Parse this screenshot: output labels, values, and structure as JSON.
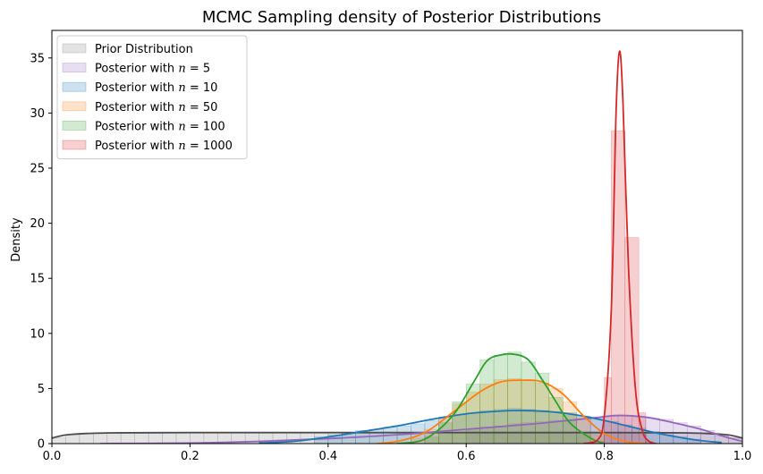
{
  "chart_data": {
    "type": "area",
    "title": "MCMC Sampling density of Posterior Distributions",
    "xlabel": "",
    "ylabel": "Density",
    "xlim": [
      0.0,
      1.0
    ],
    "ylim": [
      0,
      37.5
    ],
    "x_ticks": [
      "0.0",
      "0.2",
      "0.4",
      "0.6",
      "0.8",
      "1.0"
    ],
    "y_ticks": [
      "0",
      "5",
      "10",
      "15",
      "20",
      "25",
      "30",
      "35"
    ],
    "legend_position": "top-left",
    "series": [
      {
        "name": "Prior Distribution",
        "hist_color": "#7f7f7f",
        "line_color": "#4d4d4d",
        "hist_bins": [
          [
            0.0,
            0.02,
            0.55
          ],
          [
            0.02,
            0.04,
            0.85
          ],
          [
            0.04,
            0.06,
            0.95
          ],
          [
            0.06,
            0.08,
            1.0
          ],
          [
            0.08,
            0.1,
            1.0
          ],
          [
            0.1,
            0.12,
            1.0
          ],
          [
            0.12,
            0.14,
            1.0
          ],
          [
            0.14,
            0.16,
            1.0
          ],
          [
            0.16,
            0.18,
            1.0
          ],
          [
            0.18,
            0.2,
            1.0
          ],
          [
            0.2,
            0.22,
            1.0
          ],
          [
            0.22,
            0.24,
            1.0
          ],
          [
            0.24,
            0.26,
            1.0
          ],
          [
            0.26,
            0.28,
            1.0
          ],
          [
            0.28,
            0.3,
            1.0
          ],
          [
            0.3,
            0.32,
            1.0
          ],
          [
            0.32,
            0.34,
            1.0
          ],
          [
            0.34,
            0.36,
            1.0
          ],
          [
            0.36,
            0.38,
            1.0
          ],
          [
            0.38,
            0.4,
            1.0
          ],
          [
            0.4,
            0.42,
            1.0
          ],
          [
            0.42,
            0.44,
            1.0
          ],
          [
            0.44,
            0.46,
            1.0
          ],
          [
            0.46,
            0.48,
            1.0
          ],
          [
            0.48,
            0.5,
            1.0
          ],
          [
            0.5,
            0.52,
            1.0
          ],
          [
            0.52,
            0.54,
            1.0
          ],
          [
            0.54,
            0.56,
            1.0
          ],
          [
            0.56,
            0.58,
            1.0
          ],
          [
            0.58,
            0.6,
            1.0
          ],
          [
            0.6,
            0.62,
            1.0
          ],
          [
            0.62,
            0.64,
            1.0
          ],
          [
            0.64,
            0.66,
            1.0
          ],
          [
            0.66,
            0.68,
            1.0
          ],
          [
            0.68,
            0.7,
            1.0
          ],
          [
            0.7,
            0.72,
            1.0
          ],
          [
            0.72,
            0.74,
            1.0
          ],
          [
            0.74,
            0.76,
            1.0
          ],
          [
            0.76,
            0.78,
            1.0
          ],
          [
            0.78,
            0.8,
            1.0
          ],
          [
            0.8,
            0.82,
            1.0
          ],
          [
            0.82,
            0.84,
            1.0
          ],
          [
            0.84,
            0.86,
            1.0
          ],
          [
            0.86,
            0.88,
            1.0
          ],
          [
            0.88,
            0.9,
            1.0
          ],
          [
            0.9,
            0.92,
            1.0
          ],
          [
            0.92,
            0.94,
            0.95
          ],
          [
            0.94,
            0.96,
            0.85
          ],
          [
            0.96,
            0.98,
            0.7
          ],
          [
            0.98,
            1.0,
            0.55
          ]
        ],
        "kde": [
          [
            0.0,
            0.5
          ],
          [
            0.02,
            0.78
          ],
          [
            0.05,
            0.92
          ],
          [
            0.1,
            0.98
          ],
          [
            0.2,
            1.0
          ],
          [
            0.4,
            1.0
          ],
          [
            0.6,
            1.0
          ],
          [
            0.8,
            1.0
          ],
          [
            0.9,
            0.98
          ],
          [
            0.95,
            0.92
          ],
          [
            0.98,
            0.78
          ],
          [
            1.0,
            0.5
          ]
        ]
      },
      {
        "name": "Posterior with $n=5$",
        "hist_color": "#9467bd",
        "line_color": "#9467bd",
        "hist_bins": [
          [
            0.6,
            0.62,
            1.3
          ],
          [
            0.62,
            0.64,
            1.5
          ],
          [
            0.64,
            0.66,
            1.6
          ],
          [
            0.66,
            0.68,
            1.8
          ],
          [
            0.68,
            0.7,
            1.9
          ],
          [
            0.7,
            0.72,
            2.0
          ],
          [
            0.72,
            0.74,
            2.1
          ],
          [
            0.74,
            0.76,
            2.2
          ],
          [
            0.76,
            0.78,
            2.3
          ],
          [
            0.78,
            0.8,
            2.4
          ],
          [
            0.8,
            0.82,
            2.5
          ],
          [
            0.82,
            0.84,
            2.5
          ],
          [
            0.84,
            0.86,
            2.4
          ],
          [
            0.86,
            0.88,
            2.3
          ],
          [
            0.88,
            0.9,
            2.2
          ],
          [
            0.9,
            0.92,
            1.9
          ],
          [
            0.92,
            0.94,
            1.6
          ],
          [
            0.94,
            0.96,
            1.2
          ],
          [
            0.96,
            0.98,
            0.8
          ],
          [
            0.98,
            1.0,
            0.5
          ]
        ],
        "kde": [
          [
            0.07,
            0.0
          ],
          [
            0.2,
            0.05
          ],
          [
            0.3,
            0.2
          ],
          [
            0.4,
            0.45
          ],
          [
            0.5,
            0.8
          ],
          [
            0.6,
            1.3
          ],
          [
            0.7,
            1.8
          ],
          [
            0.78,
            2.3
          ],
          [
            0.82,
            2.55
          ],
          [
            0.86,
            2.4
          ],
          [
            0.9,
            1.9
          ],
          [
            0.94,
            1.3
          ],
          [
            0.97,
            0.7
          ],
          [
            1.0,
            0.2
          ]
        ]
      },
      {
        "name": "Posterior with $n=10$",
        "hist_color": "#1f77b4",
        "line_color": "#1f77b4",
        "hist_bins": [
          [
            0.38,
            0.4,
            0.6
          ],
          [
            0.4,
            0.42,
            0.8
          ],
          [
            0.42,
            0.44,
            1.0
          ],
          [
            0.44,
            0.46,
            1.2
          ],
          [
            0.46,
            0.48,
            1.3
          ],
          [
            0.48,
            0.5,
            1.5
          ],
          [
            0.5,
            0.52,
            1.6
          ],
          [
            0.52,
            0.54,
            1.8
          ],
          [
            0.54,
            0.56,
            2.1
          ],
          [
            0.56,
            0.58,
            2.4
          ],
          [
            0.58,
            0.6,
            2.6
          ],
          [
            0.6,
            0.62,
            2.8
          ],
          [
            0.62,
            0.64,
            3.0
          ],
          [
            0.64,
            0.66,
            3.1
          ],
          [
            0.66,
            0.68,
            3.2
          ],
          [
            0.68,
            0.7,
            3.1
          ],
          [
            0.7,
            0.72,
            3.0
          ],
          [
            0.72,
            0.74,
            2.9
          ],
          [
            0.74,
            0.76,
            2.8
          ],
          [
            0.76,
            0.78,
            2.5
          ],
          [
            0.78,
            0.8,
            2.3
          ],
          [
            0.8,
            0.82,
            2.0
          ],
          [
            0.82,
            0.84,
            1.7
          ],
          [
            0.84,
            0.86,
            1.4
          ],
          [
            0.86,
            0.88,
            1.1
          ],
          [
            0.88,
            0.9,
            0.8
          ],
          [
            0.9,
            0.92,
            0.6
          ],
          [
            0.92,
            0.94,
            0.4
          ]
        ],
        "kde": [
          [
            0.3,
            0.05
          ],
          [
            0.35,
            0.2
          ],
          [
            0.4,
            0.6
          ],
          [
            0.45,
            1.1
          ],
          [
            0.5,
            1.6
          ],
          [
            0.55,
            2.2
          ],
          [
            0.6,
            2.7
          ],
          [
            0.65,
            2.95
          ],
          [
            0.68,
            3.0
          ],
          [
            0.72,
            2.9
          ],
          [
            0.76,
            2.6
          ],
          [
            0.8,
            2.1
          ],
          [
            0.84,
            1.5
          ],
          [
            0.88,
            0.9
          ],
          [
            0.92,
            0.45
          ],
          [
            0.95,
            0.2
          ],
          [
            0.97,
            0.1
          ]
        ]
      },
      {
        "name": "Posterior with $n=50$",
        "hist_color": "#ff7f0e",
        "line_color": "#ff7f0e",
        "hist_bins": [
          [
            0.52,
            0.54,
            0.5
          ],
          [
            0.54,
            0.56,
            1.3
          ],
          [
            0.56,
            0.58,
            2.4
          ],
          [
            0.58,
            0.6,
            3.6
          ],
          [
            0.6,
            0.62,
            4.7
          ],
          [
            0.62,
            0.64,
            5.4
          ],
          [
            0.64,
            0.66,
            5.8
          ],
          [
            0.66,
            0.68,
            5.9
          ],
          [
            0.68,
            0.7,
            5.8
          ],
          [
            0.7,
            0.72,
            5.5
          ],
          [
            0.72,
            0.74,
            5.0
          ],
          [
            0.74,
            0.76,
            3.8
          ],
          [
            0.76,
            0.78,
            2.4
          ],
          [
            0.78,
            0.8,
            1.0
          ]
        ],
        "kde": [
          [
            0.47,
            0.0
          ],
          [
            0.5,
            0.2
          ],
          [
            0.54,
            1.0
          ],
          [
            0.58,
            2.8
          ],
          [
            0.62,
            4.7
          ],
          [
            0.65,
            5.6
          ],
          [
            0.68,
            5.75
          ],
          [
            0.71,
            5.6
          ],
          [
            0.74,
            4.5
          ],
          [
            0.77,
            2.5
          ],
          [
            0.8,
            0.9
          ],
          [
            0.83,
            0.2
          ],
          [
            0.86,
            0.0
          ]
        ]
      },
      {
        "name": "Posterior with $n=100$",
        "hist_color": "#2ca02c",
        "line_color": "#2ca02c",
        "hist_bins": [
          [
            0.54,
            0.56,
            0.6
          ],
          [
            0.56,
            0.58,
            1.9
          ],
          [
            0.58,
            0.6,
            3.8
          ],
          [
            0.6,
            0.62,
            5.4
          ],
          [
            0.62,
            0.64,
            7.6
          ],
          [
            0.64,
            0.66,
            8.0
          ],
          [
            0.66,
            0.68,
            8.3
          ],
          [
            0.68,
            0.7,
            7.4
          ],
          [
            0.7,
            0.72,
            6.4
          ],
          [
            0.72,
            0.74,
            4.2
          ],
          [
            0.74,
            0.76,
            2.6
          ],
          [
            0.76,
            0.78,
            1.0
          ]
        ],
        "kde": [
          [
            0.5,
            0.0
          ],
          [
            0.54,
            0.4
          ],
          [
            0.58,
            2.5
          ],
          [
            0.61,
            5.5
          ],
          [
            0.63,
            7.5
          ],
          [
            0.65,
            8.05
          ],
          [
            0.67,
            8.1
          ],
          [
            0.69,
            7.6
          ],
          [
            0.71,
            5.8
          ],
          [
            0.73,
            3.8
          ],
          [
            0.75,
            1.9
          ],
          [
            0.78,
            0.5
          ],
          [
            0.8,
            0.0
          ]
        ]
      },
      {
        "name": "Posterior with $n=1000$",
        "hist_color": "#d62728",
        "line_color": "#d62728",
        "hist_bins": [
          [
            0.78,
            0.8,
            0.2
          ],
          [
            0.8,
            0.81,
            6.0
          ],
          [
            0.81,
            0.83,
            28.4
          ],
          [
            0.83,
            0.85,
            18.7
          ],
          [
            0.85,
            0.86,
            2.8
          ],
          [
            0.86,
            0.87,
            0.2
          ]
        ],
        "kde": [
          [
            0.77,
            0.0
          ],
          [
            0.79,
            0.3
          ],
          [
            0.8,
            2.5
          ],
          [
            0.81,
            12.0
          ],
          [
            0.817,
            30.0
          ],
          [
            0.822,
            35.6
          ],
          [
            0.827,
            31.0
          ],
          [
            0.835,
            16.0
          ],
          [
            0.845,
            5.0
          ],
          [
            0.855,
            1.2
          ],
          [
            0.865,
            0.2
          ],
          [
            0.875,
            0.0
          ]
        ]
      }
    ]
  }
}
